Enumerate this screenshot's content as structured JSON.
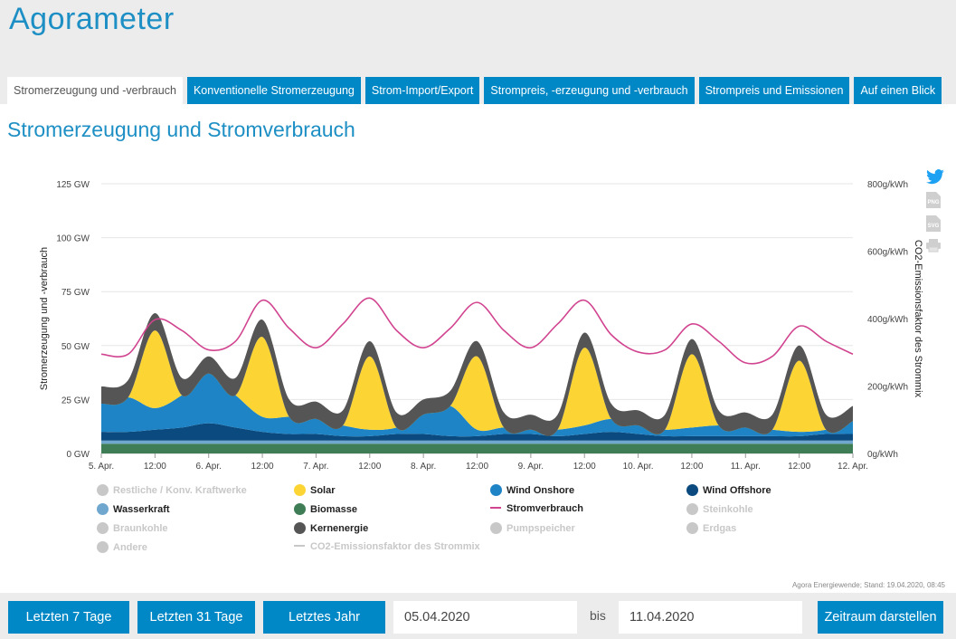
{
  "app": {
    "title": "Agorameter"
  },
  "tabs": [
    {
      "label": "Stromerzeugung und -verbrauch",
      "active": true
    },
    {
      "label": "Konventionelle Stromerzeugung"
    },
    {
      "label": "Strom-Import/Export"
    },
    {
      "label": "Strompreis, -erzeugung und -verbrauch"
    },
    {
      "label": "Strompreis und Emissionen"
    },
    {
      "label": "Auf einen Blick"
    }
  ],
  "section": {
    "title": "Stromerzeugung und Stromverbrauch"
  },
  "side_icons": [
    "twitter-icon",
    "png-download-icon",
    "svg-download-icon",
    "print-icon"
  ],
  "side_icon_labels": {
    "png": "PNG",
    "svg": "SVG"
  },
  "credit": "Agora Energiewende; Stand: 19.04.2020, 08:45",
  "legend": [
    {
      "label": "Restliche / Konv. Kraftwerke",
      "color": "#c8c8c8",
      "active": false,
      "shape": "dot"
    },
    {
      "label": "Solar",
      "color": "#fcd535",
      "active": true,
      "shape": "dot"
    },
    {
      "label": "Wind Onshore",
      "color": "#1f84c6",
      "active": true,
      "shape": "dot"
    },
    {
      "label": "Wind Offshore",
      "color": "#0a4a7e",
      "active": true,
      "shape": "dot"
    },
    {
      "label": "Wasserkraft",
      "color": "#6fa7cf",
      "active": true,
      "shape": "dot"
    },
    {
      "label": "Biomasse",
      "color": "#3e7d56",
      "active": true,
      "shape": "dot"
    },
    {
      "label": "Stromverbrauch",
      "color": "#d1448f",
      "active": true,
      "shape": "line"
    },
    {
      "label": "Steinkohle",
      "color": "#c8c8c8",
      "active": false,
      "shape": "dot"
    },
    {
      "label": "Braunkohle",
      "color": "#c8c8c8",
      "active": false,
      "shape": "dot"
    },
    {
      "label": "Kernenergie",
      "color": "#555555",
      "active": true,
      "shape": "dot"
    },
    {
      "label": "Pumpspeicher",
      "color": "#c8c8c8",
      "active": false,
      "shape": "dot"
    },
    {
      "label": "Erdgas",
      "color": "#c8c8c8",
      "active": false,
      "shape": "dot"
    },
    {
      "label": "Andere",
      "color": "#c8c8c8",
      "active": false,
      "shape": "dot"
    },
    {
      "label": "CO2-Emissionsfaktor des Strommix",
      "color": "#c8c8c8",
      "active": false,
      "shape": "line"
    }
  ],
  "controls": {
    "btn_7": "Letzten 7 Tage",
    "btn_31": "Letzten 31 Tage",
    "btn_year": "Letztes Jahr",
    "date_from": "05.04.2020",
    "bis": "bis",
    "date_to": "11.04.2020",
    "btn_show": "Zeitraum darstellen"
  },
  "chart_data": {
    "type": "area",
    "stacked": true,
    "ylabel": "Stromerzeugung und -verbrauch",
    "y2label": "CO2-Emissionsfaktor des Strommix",
    "yunit": "GW",
    "ylim": [
      0,
      125
    ],
    "yticks": [
      "0 GW",
      "25 GW",
      "50 GW",
      "75 GW",
      "100 GW",
      "125 GW"
    ],
    "y2lim": [
      0,
      800
    ],
    "y2ticks": [
      "0g/kWh",
      "200g/kWh",
      "400g/kWh",
      "600g/kWh",
      "800g/kWh"
    ],
    "xticks": [
      "5. Apr.",
      "12:00",
      "6. Apr.",
      "12:00",
      "7. Apr.",
      "12:00",
      "8. Apr.",
      "12:00",
      "9. Apr.",
      "12:00",
      "10. Apr.",
      "12:00",
      "11. Apr.",
      "12:00",
      "12. Apr."
    ],
    "grid": true,
    "x_hours": [
      0,
      6,
      12,
      18,
      24,
      30,
      36,
      42,
      48,
      54,
      60,
      66,
      72,
      78,
      84,
      90,
      96,
      102,
      108,
      114,
      120,
      126,
      132,
      138,
      144,
      150,
      156,
      162,
      168
    ],
    "series": [
      {
        "name": "Biomasse",
        "values": [
          4.5,
          4.5,
          4.5,
          4.5,
          4.5,
          4.5,
          4.5,
          4.5,
          4.5,
          4.5,
          4.5,
          4.5,
          4.5,
          4.5,
          4.5,
          4.5,
          4.5,
          4.5,
          4.5,
          4.5,
          4.5,
          4.5,
          4.5,
          4.5,
          4.5,
          4.5,
          4.5,
          4.5,
          4.5
        ]
      },
      {
        "name": "Wasserkraft",
        "values": [
          1.5,
          1.5,
          1.5,
          1.5,
          1.5,
          1.5,
          1.5,
          1.5,
          1.5,
          1.5,
          1.5,
          1.5,
          1.5,
          1.5,
          1.5,
          1.5,
          1.5,
          1.5,
          1.5,
          1.5,
          1.5,
          1.5,
          1.5,
          1.5,
          1.5,
          1.5,
          1.5,
          1.5,
          1.5
        ]
      },
      {
        "name": "Wind Offshore",
        "values": [
          4,
          4,
          5,
          6,
          8,
          6,
          4,
          3,
          3,
          2,
          2,
          3,
          3,
          2,
          2,
          3,
          3,
          2,
          3,
          4,
          3,
          2,
          2,
          2,
          2,
          2,
          2,
          3,
          3
        ]
      },
      {
        "name": "Wind Onshore",
        "values": [
          13,
          16,
          10,
          15,
          23,
          15,
          7,
          8,
          7,
          5,
          3,
          3,
          9,
          14,
          3,
          3,
          2,
          3,
          4,
          6,
          4,
          3,
          4,
          5,
          4,
          3,
          2,
          2,
          6
        ]
      },
      {
        "name": "Solar",
        "values": [
          0,
          0,
          36,
          0,
          0,
          0,
          37,
          0,
          0,
          0,
          34,
          0,
          0,
          0,
          34,
          0,
          0,
          0,
          36,
          0,
          0,
          0,
          34,
          0,
          0,
          0,
          33,
          0,
          0
        ]
      },
      {
        "name": "Kernenergie",
        "values": [
          8,
          8,
          8,
          8,
          8,
          8,
          8,
          8,
          8,
          7,
          7,
          7,
          7,
          7,
          7,
          7,
          7,
          7,
          7,
          7,
          7,
          7,
          7,
          7,
          7,
          7,
          7,
          7,
          7
        ]
      },
      {
        "name": "Stromverbrauch",
        "type": "line",
        "values": [
          46,
          46,
          62,
          57,
          48,
          52,
          71,
          58,
          49,
          60,
          72,
          57,
          49,
          58,
          70,
          57,
          49,
          60,
          71,
          55,
          47,
          48,
          60,
          52,
          42,
          45,
          59,
          52,
          46
        ]
      }
    ]
  }
}
